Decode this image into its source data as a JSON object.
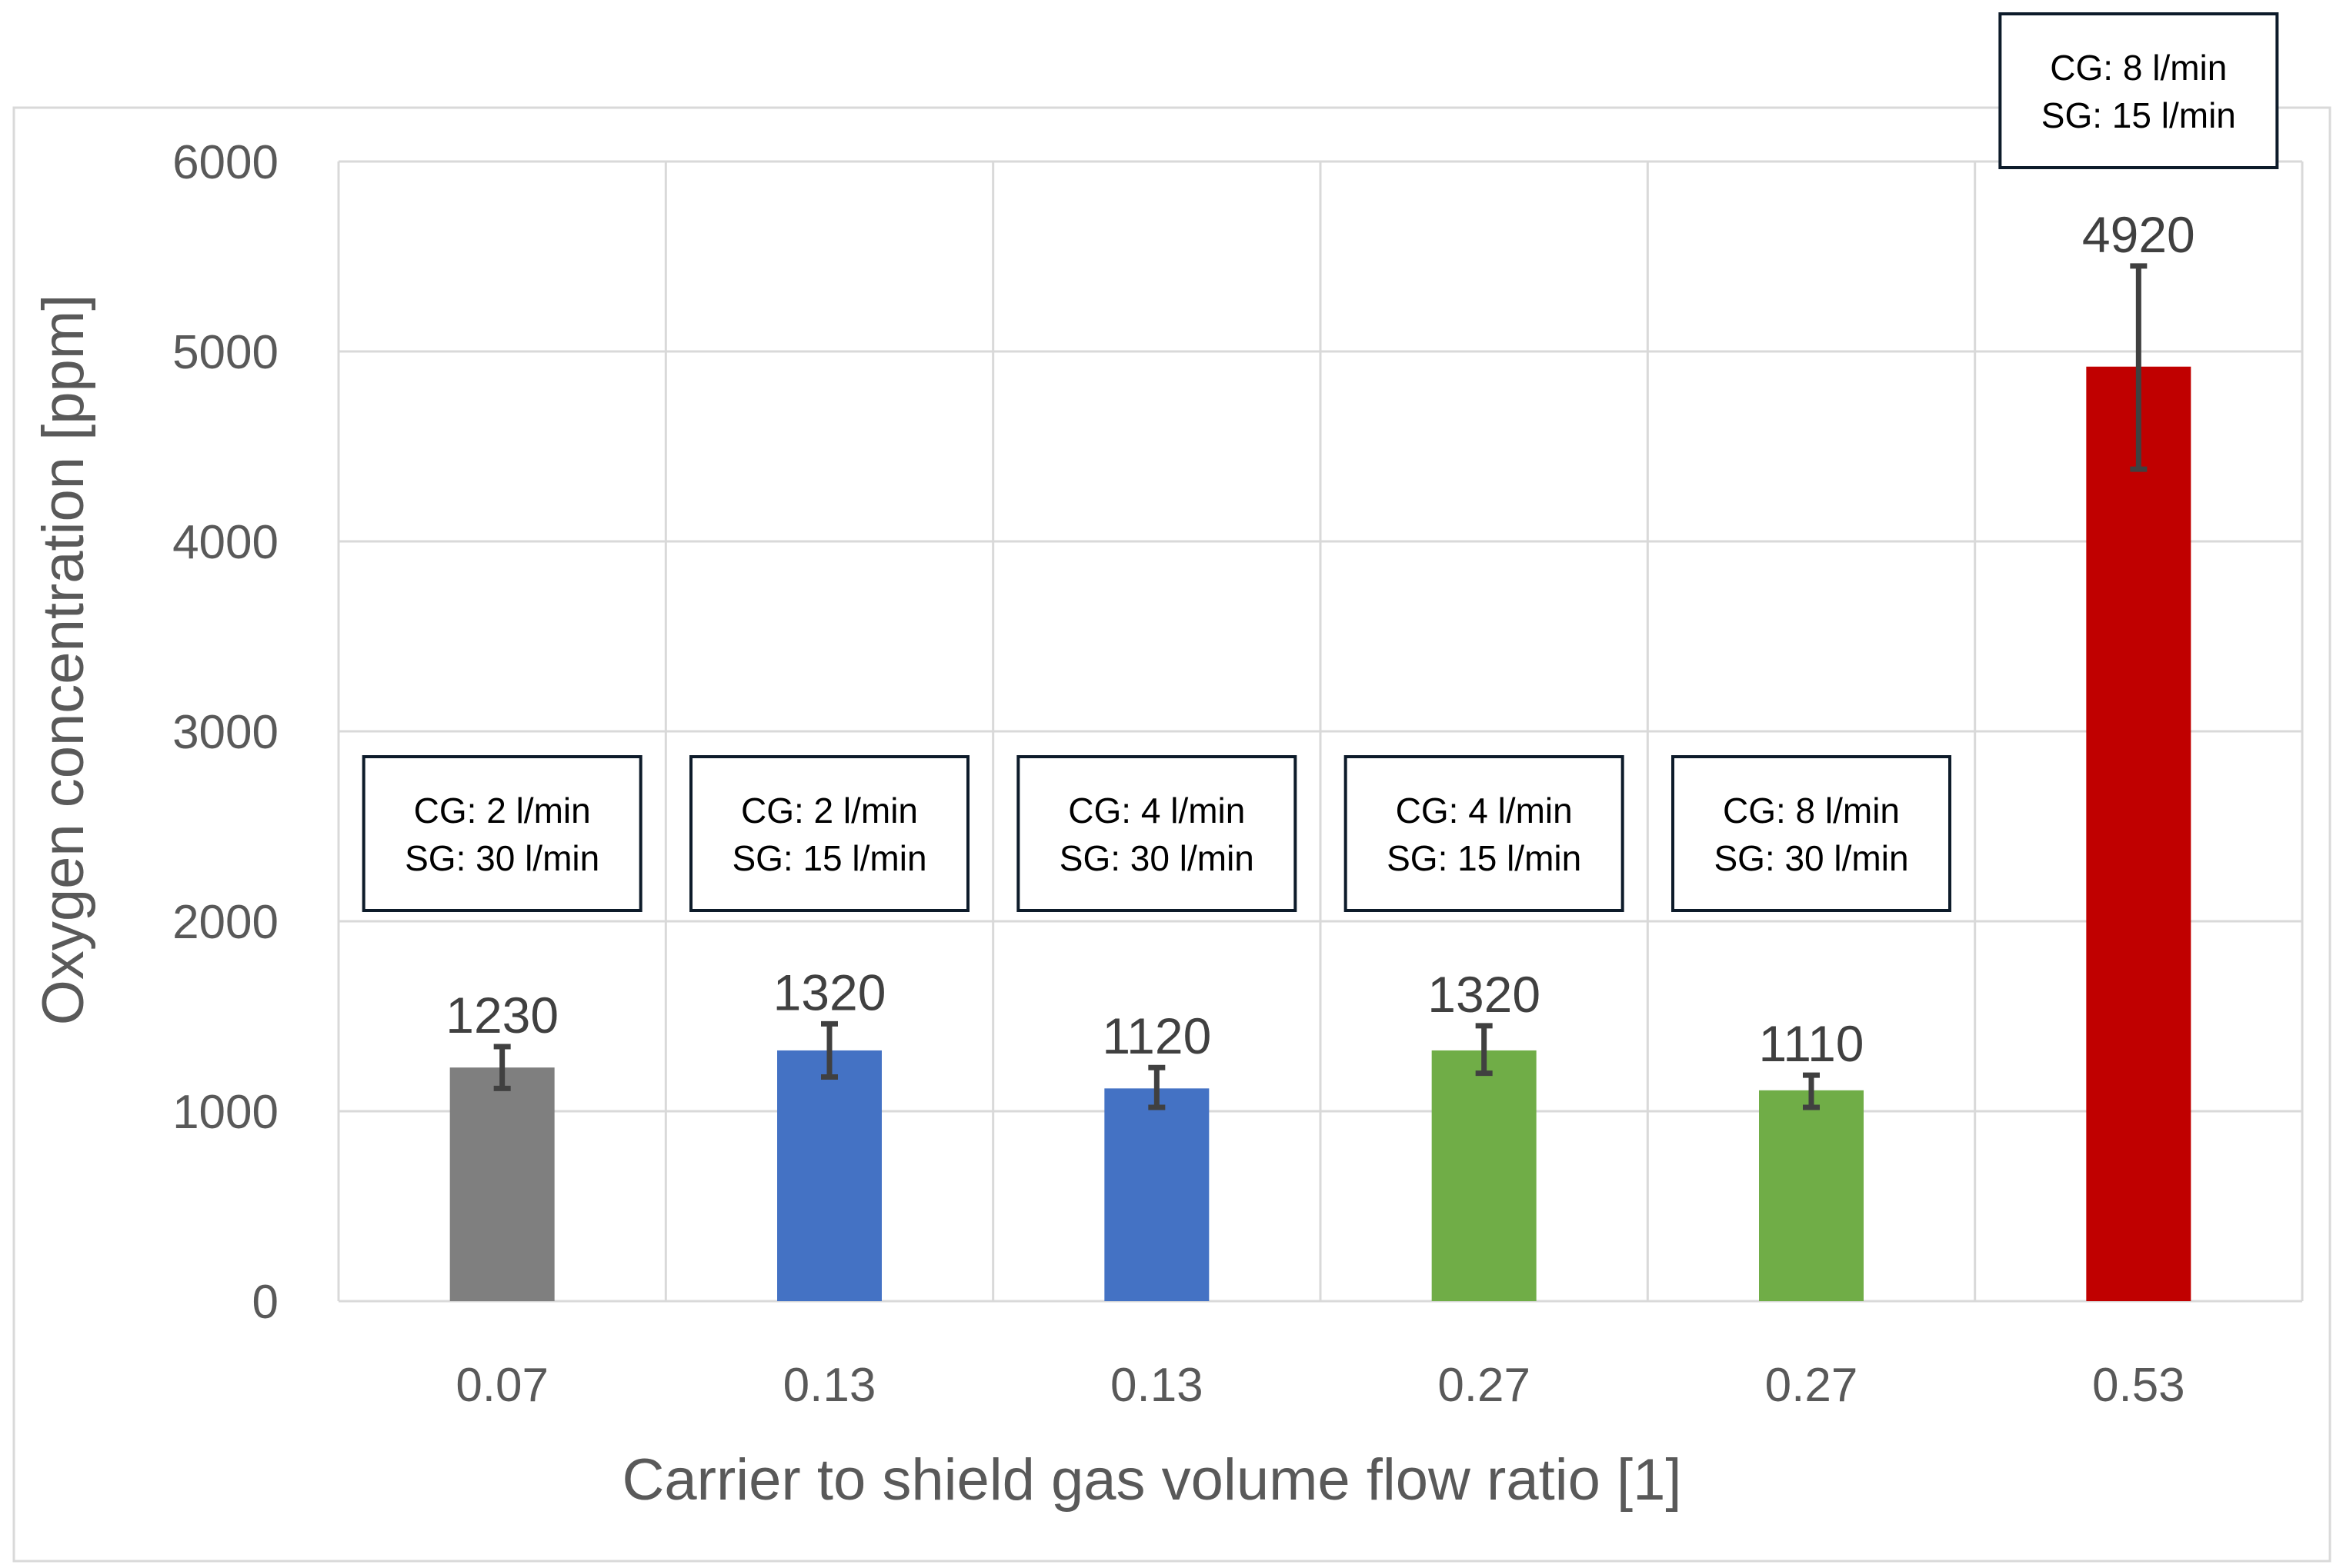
{
  "chart_data": {
    "type": "bar",
    "title": "",
    "xlabel": "Carrier to shield gas volume flow ratio [1]",
    "ylabel": "Oxygen concentration [ppm]",
    "ylim": [
      0,
      6000
    ],
    "yticks": [
      "0",
      "1000",
      "2000",
      "3000",
      "4000",
      "5000",
      "6000"
    ],
    "grid": true,
    "legend": "none",
    "categories": [
      "0.07",
      "0.13",
      "0.13",
      "0.27",
      "0.27",
      "0.53"
    ],
    "values": [
      1230,
      1320,
      1120,
      1320,
      1110,
      4920
    ],
    "value_labels": [
      "1230",
      "1320",
      "1120",
      "1320",
      "1110",
      "4920"
    ],
    "error_low": [
      1120,
      1180,
      1020,
      1200,
      1020,
      4380
    ],
    "error_high": [
      1340,
      1460,
      1230,
      1450,
      1190,
      5450
    ],
    "colors": [
      "#7f7f7f",
      "#4472c4",
      "#4472c4",
      "#70ad47",
      "#70ad47",
      "#c00000"
    ],
    "annotations": [
      {
        "line1": "CG: 2 l/min",
        "line2": "SG: 30 l/min"
      },
      {
        "line1": "CG: 2 l/min",
        "line2": "SG: 15 l/min"
      },
      {
        "line1": "CG: 4 l/min",
        "line2": "SG: 30 l/min"
      },
      {
        "line1": "CG: 4 l/min",
        "line2": "SG: 15 l/min"
      },
      {
        "line1": "CG: 8 l/min",
        "line2": "SG: 30 l/min"
      },
      {
        "line1": "CG: 8 l/min",
        "line2": "SG: 15 l/min"
      }
    ],
    "annotation_border_color": "#0d1b2a",
    "error_bar_color": "#404040",
    "grid_color": "#d9d9d9"
  }
}
